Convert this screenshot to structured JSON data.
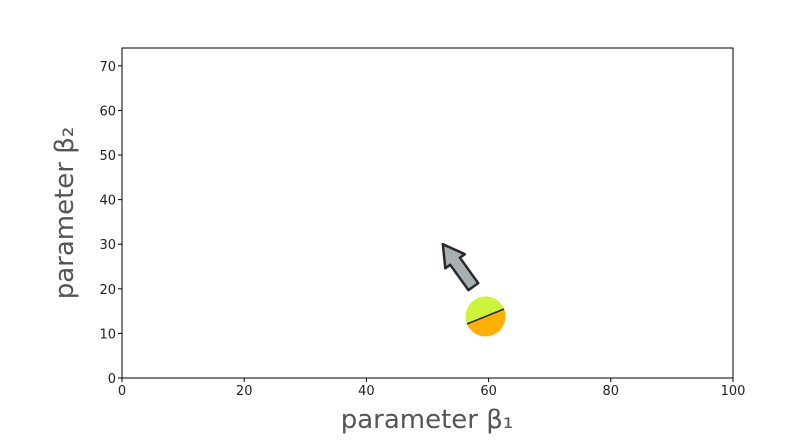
{
  "chart_data": {
    "type": "scatter",
    "xlabel": "parameter β₁",
    "ylabel": "parameter β₂",
    "xlim": [
      0,
      100
    ],
    "ylim": [
      0,
      74
    ],
    "x_ticks": [
      0,
      20,
      40,
      60,
      80,
      100
    ],
    "y_ticks": [
      0,
      10,
      20,
      30,
      40,
      50,
      60,
      70
    ],
    "x_tick_labels": [
      "0",
      "20",
      "40",
      "60",
      "80",
      "100"
    ],
    "y_tick_labels": [
      "0",
      "10",
      "20",
      "30",
      "40",
      "50",
      "60",
      "70"
    ],
    "grid": false,
    "points": [
      {
        "x": 59.5,
        "y": 13.8,
        "top_color": "#ccf53a",
        "bottom_color": "#ffb000"
      }
    ],
    "arrow": {
      "from": {
        "x": 57.5,
        "y": 20.5
      },
      "to": {
        "x": 52.5,
        "y": 30.0
      },
      "color": "#a9b0b4"
    },
    "colors": {
      "frame": "#000000",
      "point_top": "#ccf53a",
      "point_bottom": "#ffb000",
      "arrow_fill": "#a9b0b4"
    }
  }
}
